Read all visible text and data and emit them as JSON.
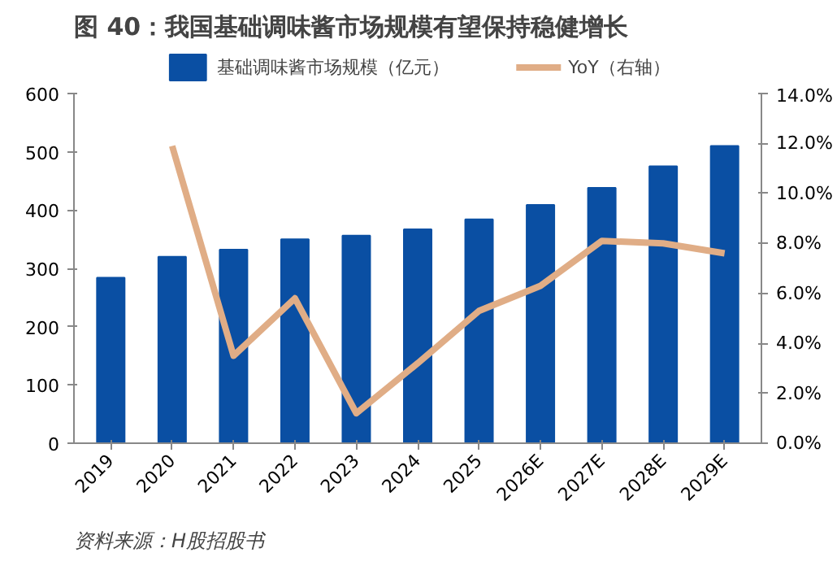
{
  "chart_data": {
    "type": "bar",
    "title": "图 40：我国基础调味酱市场规模有望保持稳健增长",
    "categories": [
      "2019",
      "2020",
      "2021",
      "2022",
      "2023",
      "2024",
      "2025",
      "2026E",
      "2027E",
      "2028E",
      "2029E"
    ],
    "series": [
      {
        "name": "基础调味酱市场规模（亿元）",
        "color": "#0a4fa3",
        "values": [
          284,
          320,
          332,
          350,
          356,
          367,
          384,
          409,
          438,
          475,
          510
        ]
      },
      {
        "name": "YoY（右轴）",
        "type": "line",
        "axis": "y2",
        "color": "#e0ad86",
        "values": [
          null,
          11.9,
          3.5,
          5.8,
          1.2,
          3.2,
          5.3,
          6.3,
          8.1,
          8.0,
          7.6
        ]
      }
    ],
    "ylim": [
      0,
      600
    ],
    "yticks": [
      0,
      100,
      200,
      300,
      400,
      500,
      600
    ],
    "y2lim": [
      0,
      14
    ],
    "y2ticks": [
      {
        "value": 0,
        "label": "0.0%"
      },
      {
        "value": 2,
        "label": "2.0%"
      },
      {
        "value": 4,
        "label": "4.0%"
      },
      {
        "value": 6,
        "label": "6.0%"
      },
      {
        "value": 8,
        "label": "8.0%"
      },
      {
        "value": 10,
        "label": "10.0%"
      },
      {
        "value": 12,
        "label": "12.0%"
      },
      {
        "value": 14,
        "label": "14.0%"
      }
    ],
    "legend": "top",
    "grid": false,
    "annotations": [
      "资料来源：H股招股书"
    ]
  }
}
